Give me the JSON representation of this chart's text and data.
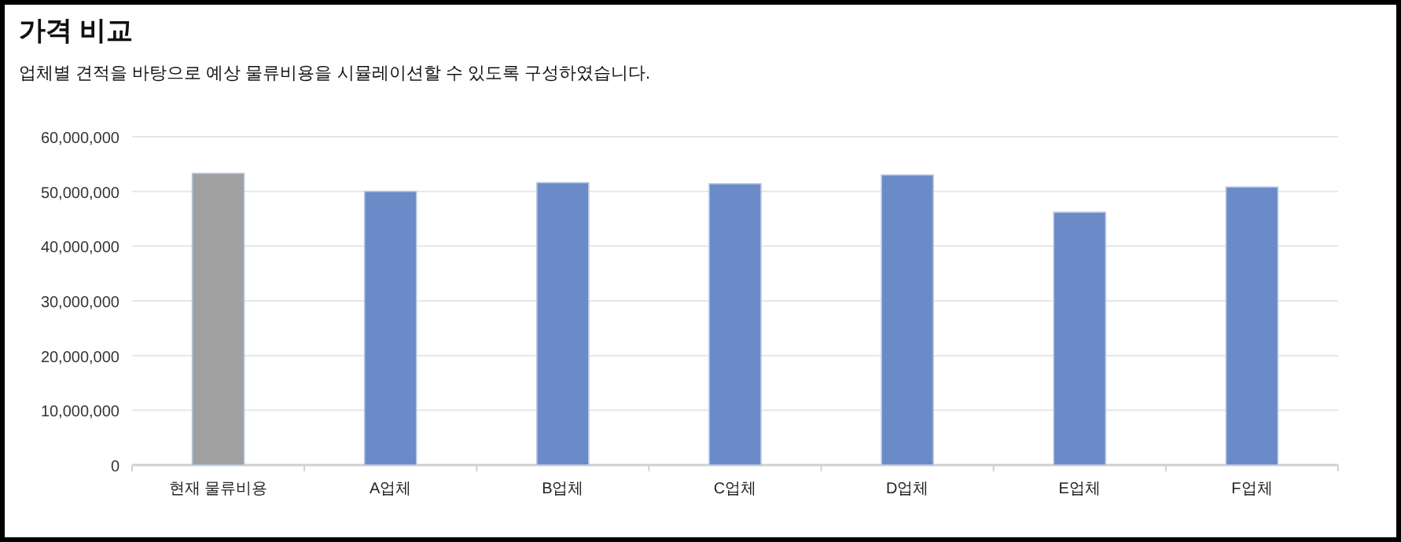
{
  "chart_data": {
    "type": "bar",
    "title": "가격 비교",
    "subtitle": "업체별 견적을 바탕으로 예상 물류비용을 시뮬레이션할 수 있도록 구성하였습니다.",
    "categories": [
      "현재 물류비용",
      "A업체",
      "B업체",
      "C업체",
      "D업체",
      "E업체",
      "F업체"
    ],
    "values": [
      53300000,
      50000000,
      51600000,
      51400000,
      53000000,
      46200000,
      50800000
    ],
    "colors": [
      "#a0a0a0",
      "#6a8bc7",
      "#6a8bc7",
      "#6a8bc7",
      "#6a8bc7",
      "#6a8bc7",
      "#6a8bc7"
    ],
    "ylim": [
      0,
      60000000
    ],
    "yticks": [
      {
        "value": 0,
        "label": "0"
      },
      {
        "value": 10000000,
        "label": "10,000,000"
      },
      {
        "value": 20000000,
        "label": "20,000,000"
      },
      {
        "value": 30000000,
        "label": "30,000,000"
      },
      {
        "value": 40000000,
        "label": "40,000,000"
      },
      {
        "value": 50000000,
        "label": "50,000,000"
      },
      {
        "value": 60000000,
        "label": "60,000,000"
      }
    ],
    "grid": "y"
  }
}
